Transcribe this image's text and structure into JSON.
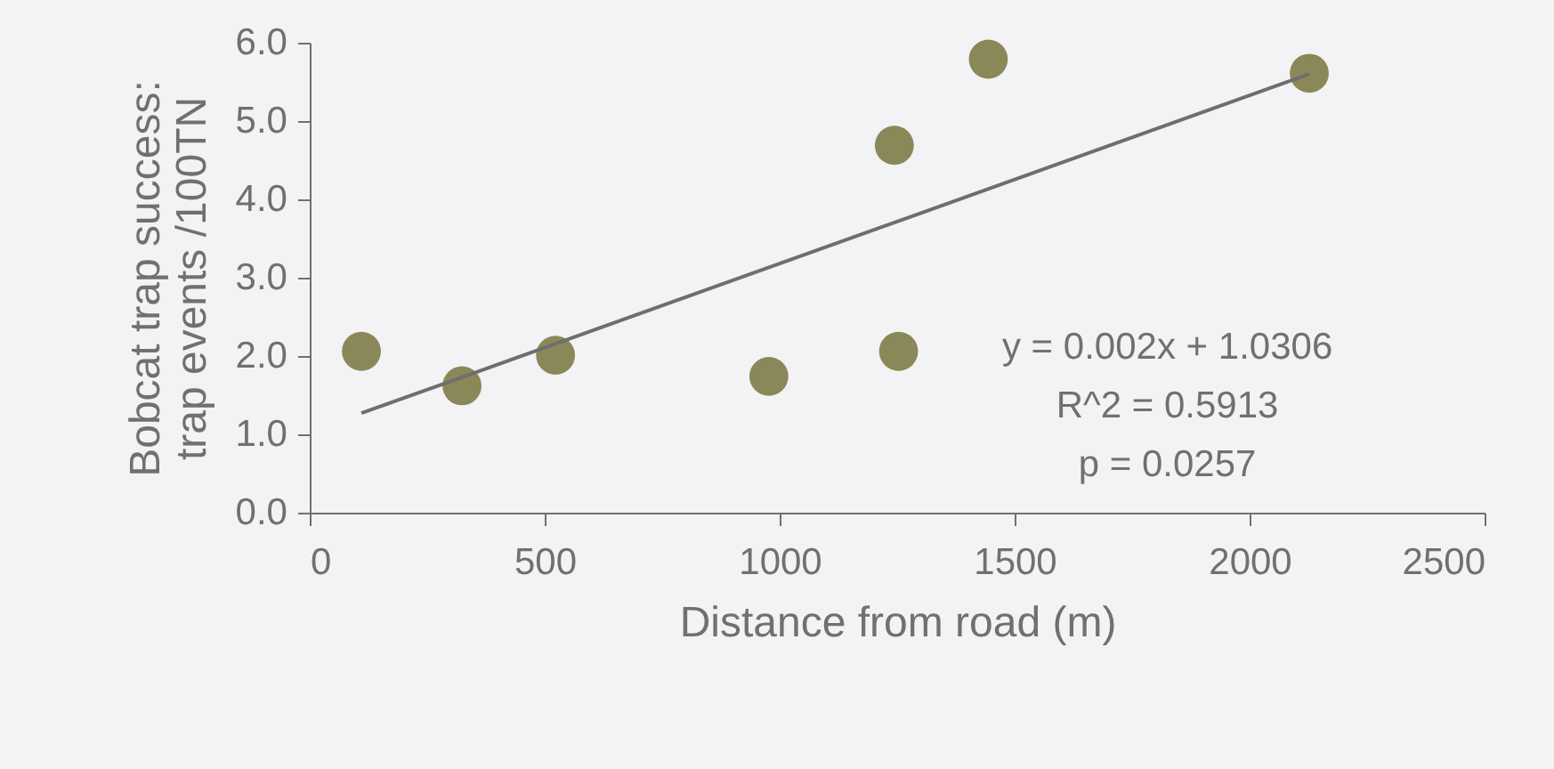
{
  "chart_data": {
    "type": "scatter",
    "xlabel": "Distance from road (m)",
    "ylabel": "Bobcat trap success:\ntrap events /100TN",
    "xlim": [
      0,
      2500
    ],
    "xticks": [
      0,
      500,
      1000,
      1500,
      2000,
      2500
    ],
    "ylim": [
      0,
      6
    ],
    "yticks": [
      {
        "value": 0,
        "label": "0.0"
      },
      {
        "value": 1,
        "label": "1.0"
      },
      {
        "value": 2,
        "label": "2.0"
      },
      {
        "value": 3,
        "label": "3.0"
      },
      {
        "value": 4,
        "label": "4.0"
      },
      {
        "value": 5,
        "label": "5.0"
      },
      {
        "value": 6,
        "label": "6.0"
      }
    ],
    "grid": false,
    "marker": "circle",
    "series": [
      {
        "color": "#8a8858",
        "x": [
          110,
          324,
          523,
          977,
          1244,
          1253,
          1444,
          2127
        ],
        "values": [
          2.06,
          1.62,
          2.01,
          1.74,
          4.69,
          2.06,
          5.79,
          5.61
        ]
      },
      {
        "type": "line",
        "color": "#6e6e6e",
        "line_style": "solid",
        "marker": "none",
        "x": [
          110,
          2127
        ],
        "values": [
          1.27,
          5.6
        ]
      }
    ],
    "annotations": [
      "y = 0.002x + 1.0306",
      "R^2 = 0.5913",
      "p = 0.0257"
    ]
  }
}
